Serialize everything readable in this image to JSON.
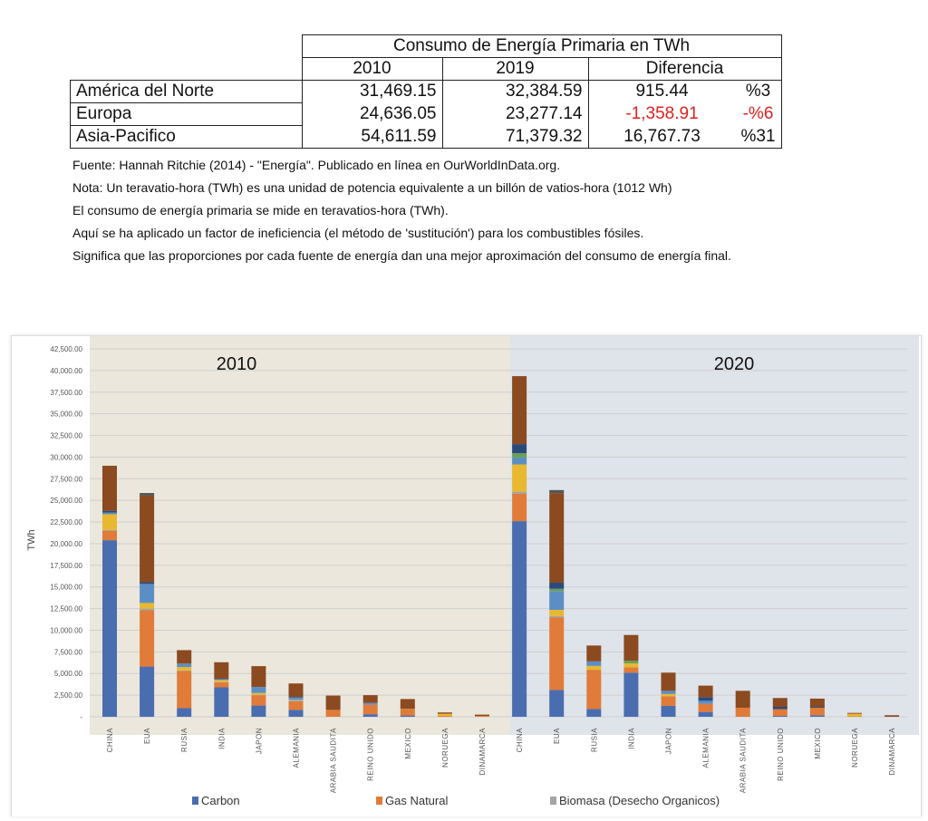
{
  "table": {
    "title": "Consumo de Energía Primaria en TWh",
    "headers": [
      "2010",
      "2019",
      "Diferencia"
    ],
    "rows": [
      {
        "region": "América del Norte",
        "y2010": "31,469.15",
        "y2019": "32,384.59",
        "diff": "915.44",
        "pct": "%3",
        "negative": false
      },
      {
        "region": "Europa",
        "y2010": "24,636.05",
        "y2019": "23,277.14",
        "diff": "-1,358.91",
        "pct": "-%6",
        "negative": true
      },
      {
        "region": "Asia-Pacifico",
        "y2010": "54,611.59",
        "y2019": "71,379.32",
        "diff": "16,767.73",
        "pct": "%31",
        "negative": false
      }
    ]
  },
  "notes": [
    "Fuente: Hannah Ritchie (2014) - \"Energía\". Publicado en línea en OurWorldInData.org.",
    "Nota: Un teravatio-hora (TWh) es una unidad de potencia equivalente a un billón de vatios-hora (1012 Wh)",
    "El consumo de energía primaria se mide en teravatios-hora (TWh).",
    "Aquí se ha aplicado un factor de ineficiencia (el método de 'sustitución') para los combustibles fósiles.",
    "Significa que las proporciones por cada fuente de energía dan una mejor aproximación del consumo de energía final."
  ],
  "chart_data": {
    "type": "bar",
    "stacked": true,
    "ylabel": "TWh",
    "ylim": [
      0,
      42500
    ],
    "yticks": [
      "-",
      "2,500.00",
      "5,000.00",
      "7,500.00",
      "10,000.00",
      "12,500.00",
      "15,000.00",
      "17,500.00",
      "20,000.00",
      "22,500.00",
      "25,000.00",
      "27,500.00",
      "30,000.00",
      "32,500.00",
      "35,000.00",
      "37,500.00",
      "40,000.00",
      "42,500.00"
    ],
    "groups": [
      {
        "label": "2010",
        "bg": "#ebe7dc"
      },
      {
        "label": "2020",
        "bg": "#dfe3ea"
      }
    ],
    "categories": [
      "CHINA",
      "EUA",
      "RUSIA",
      "INDIA",
      "JAPON",
      "ALEMANIA",
      "ARABIA SAUDITA",
      "REINO UNIDO",
      "MEXICO",
      "NORUEGA",
      "DINAMARCA",
      "CHINA",
      "EUA",
      "RUSIA",
      "INDIA",
      "JAPON",
      "ALEMANIA",
      "ARABIA SAUDITA",
      "REINO UNIDO",
      "MEXICO",
      "NORUEGA",
      "DINAMARCA"
    ],
    "series": [
      {
        "name": "Carbon",
        "color": "#4a6db0",
        "legend": true,
        "values": [
          20400,
          5800,
          1000,
          3400,
          1300,
          800,
          0,
          300,
          150,
          0,
          0,
          22600,
          3100,
          900,
          5100,
          1260,
          560,
          0,
          100,
          180,
          0,
          0
        ]
      },
      {
        "name": "Gas Natural",
        "color": "#e07b39",
        "legend": true,
        "values": [
          1100,
          6500,
          4300,
          600,
          1200,
          1000,
          800,
          1100,
          700,
          100,
          100,
          3150,
          8400,
          4530,
          600,
          1120,
          940,
          1050,
          780,
          870,
          50,
          0
        ]
      },
      {
        "name": "Biomasa (Desecho Organicos)",
        "color": "#a5a5a5",
        "legend": true,
        "values": [
          100,
          200,
          50,
          50,
          50,
          100,
          0,
          0,
          0,
          0,
          0,
          250,
          150,
          0,
          0,
          0,
          0,
          0,
          0,
          0,
          0,
          0
        ]
      },
      {
        "name": "",
        "color": "#e8b830",
        "legend": false,
        "values": [
          1800,
          650,
          400,
          200,
          200,
          50,
          0,
          0,
          50,
          250,
          0,
          3150,
          700,
          450,
          460,
          250,
          0,
          0,
          0,
          0,
          300,
          0
        ]
      },
      {
        "name": "",
        "color": "#5b8fc4",
        "legend": false,
        "values": [
          200,
          2200,
          400,
          100,
          700,
          300,
          0,
          200,
          0,
          0,
          0,
          800,
          2170,
          520,
          0,
          370,
          350,
          0,
          0,
          0,
          0,
          0
        ]
      },
      {
        "name": "",
        "color": "#6aa050",
        "legend": false,
        "values": [
          0,
          0,
          0,
          0,
          0,
          0,
          0,
          0,
          0,
          0,
          0,
          500,
          270,
          0,
          320,
          0,
          0,
          0,
          0,
          0,
          0,
          0
        ]
      },
      {
        "name": "",
        "color": "#2b4a7c",
        "legend": false,
        "values": [
          200,
          200,
          0,
          50,
          0,
          50,
          0,
          0,
          0,
          0,
          0,
          1050,
          700,
          0,
          0,
          0,
          430,
          0,
          270,
          100,
          0,
          0
        ]
      },
      {
        "name": "",
        "color": "#8b4a20",
        "legend": false,
        "values": [
          5200,
          10000,
          1550,
          1900,
          2400,
          1550,
          1650,
          900,
          1150,
          150,
          150,
          7850,
          10340,
          1830,
          2970,
          2100,
          1320,
          1950,
          1020,
          950,
          100,
          180
        ]
      },
      {
        "name": "",
        "color": "#555555",
        "legend": false,
        "values": [
          0,
          300,
          0,
          0,
          0,
          0,
          0,
          0,
          0,
          0,
          0,
          0,
          360,
          0,
          0,
          0,
          0,
          0,
          0,
          0,
          0,
          0
        ]
      }
    ]
  }
}
